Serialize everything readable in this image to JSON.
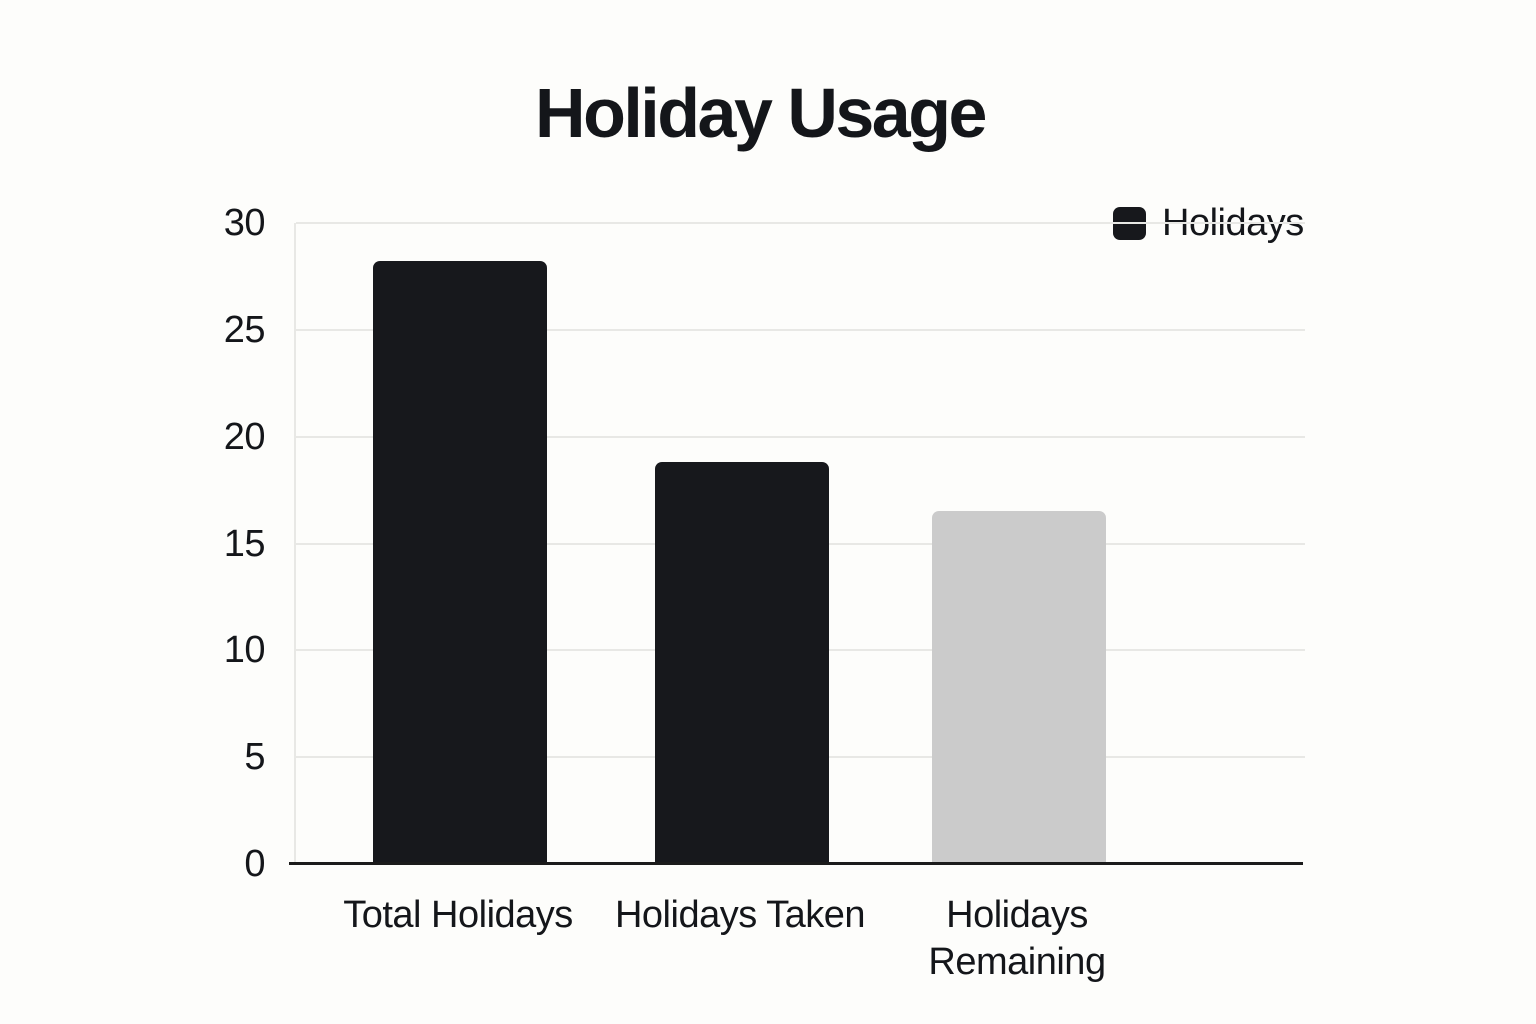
{
  "chart_data": {
    "type": "bar",
    "title": "Holiday Usage",
    "categories": [
      "Total Holidays",
      "Holidays Taken",
      "Holidays Remaining"
    ],
    "series": [
      {
        "name": "Holidays",
        "values": [
          28.2,
          18.8,
          16.5
        ]
      }
    ],
    "bar_colors": [
      "#17181c",
      "#17181c",
      "#cbcbcb"
    ],
    "xlabel": "",
    "ylabel": "",
    "ylim": [
      0,
      30
    ],
    "yticks": [
      0,
      5,
      10,
      15,
      20,
      25,
      30
    ],
    "grid": true,
    "legend": {
      "position": "top-right",
      "entries": [
        {
          "label": "Holidays",
          "color": "#17181c"
        }
      ]
    },
    "colors": {
      "background": "#fdfdfb",
      "gridline": "#e8e8e5",
      "y_axis_line": "#e8e8e5",
      "x_axis_line": "#1b1b1b",
      "text": "#14161a"
    }
  }
}
